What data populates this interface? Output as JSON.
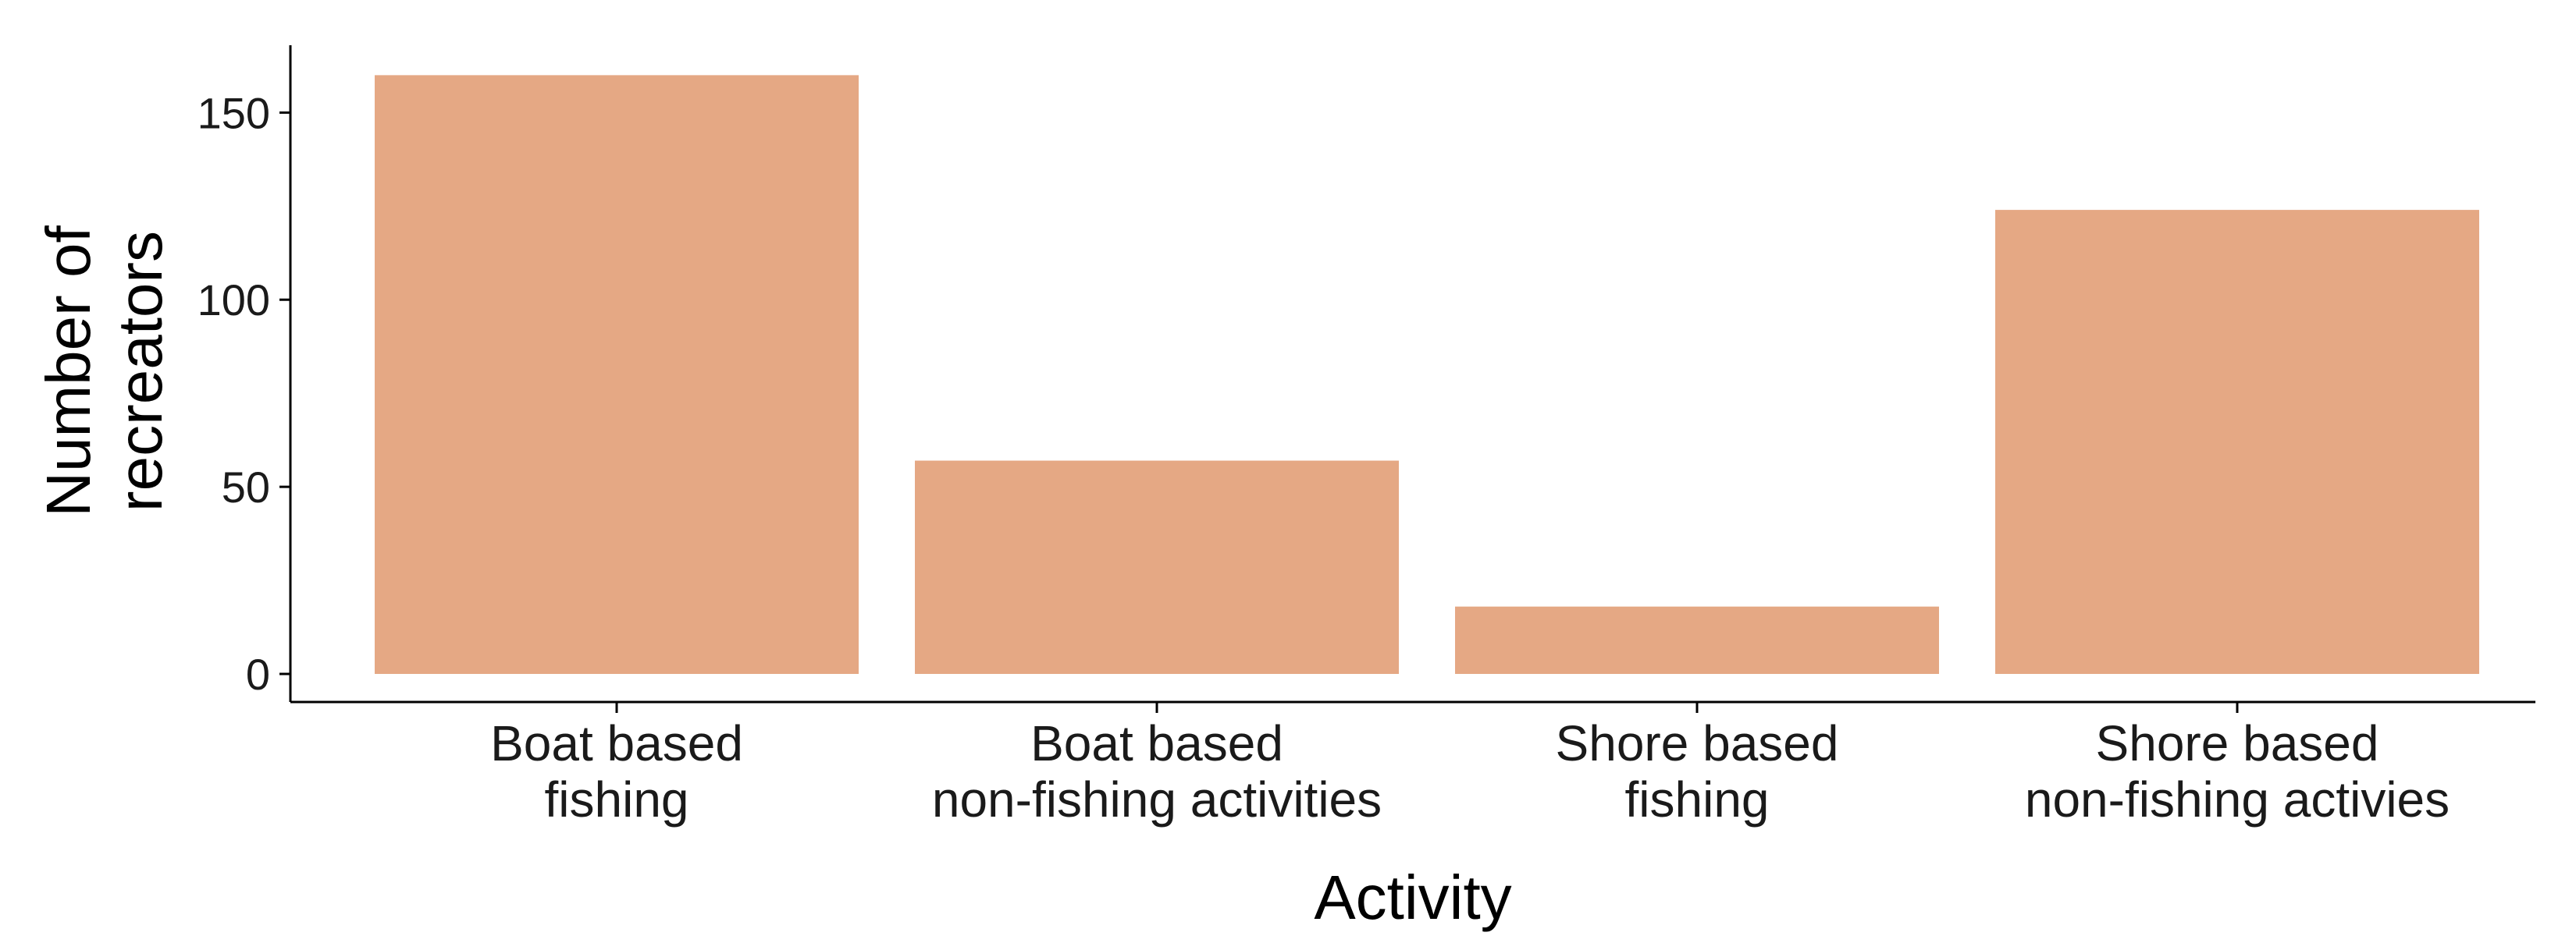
{
  "chart_data": {
    "type": "bar",
    "categories": [
      [
        "Boat based",
        "fishing"
      ],
      [
        "Boat based",
        "non-fishing activities"
      ],
      [
        "Shore based",
        "fishing"
      ],
      [
        "Shore based",
        "non-fishing activies"
      ]
    ],
    "values": [
      160,
      57,
      18,
      124
    ],
    "xlabel": "Activity",
    "ylabel": [
      "Number of",
      "recreators"
    ],
    "yticks": [
      0,
      50,
      100,
      150
    ],
    "ylim": [
      -7.5,
      168
    ],
    "bar_color": "#e5a884",
    "grid": false,
    "legend": "none"
  }
}
